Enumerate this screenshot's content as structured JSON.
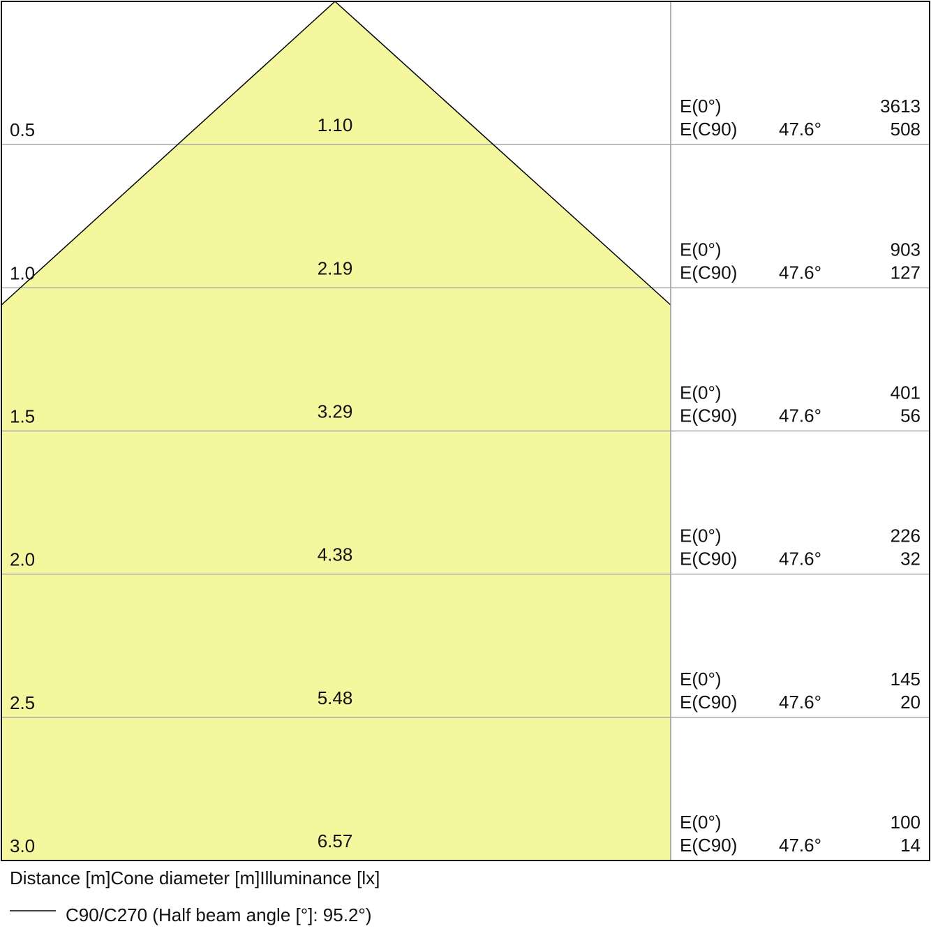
{
  "rows": [
    {
      "distance": "0.5",
      "diameter": "1.10",
      "e0_label": "E(0°)",
      "e0": "3613",
      "ec90_label": "E(C90)",
      "angle": "47.6°",
      "ec90": "508"
    },
    {
      "distance": "1.0",
      "diameter": "2.19",
      "e0_label": "E(0°)",
      "e0": "903",
      "ec90_label": "E(C90)",
      "angle": "47.6°",
      "ec90": "127"
    },
    {
      "distance": "1.5",
      "diameter": "3.29",
      "e0_label": "E(0°)",
      "e0": "401",
      "ec90_label": "E(C90)",
      "angle": "47.6°",
      "ec90": "56"
    },
    {
      "distance": "2.0",
      "diameter": "4.38",
      "e0_label": "E(0°)",
      "e0": "226",
      "ec90_label": "E(C90)",
      "angle": "47.6°",
      "ec90": "32"
    },
    {
      "distance": "2.5",
      "diameter": "5.48",
      "e0_label": "E(0°)",
      "e0": "145",
      "ec90_label": "E(C90)",
      "angle": "47.6°",
      "ec90": "20"
    },
    {
      "distance": "3.0",
      "diameter": "6.57",
      "e0_label": "E(0°)",
      "e0": "100",
      "ec90_label": "E(C90)",
      "angle": "47.6°",
      "ec90": "14"
    }
  ],
  "footer": {
    "distance_label": "Distance [m]",
    "diameter_label": "Cone diameter [m]",
    "illuminance_label": "Illuminance [lx]"
  },
  "legend": {
    "label": "C90/C270 (Half beam angle [°]: 95.2°)"
  }
}
